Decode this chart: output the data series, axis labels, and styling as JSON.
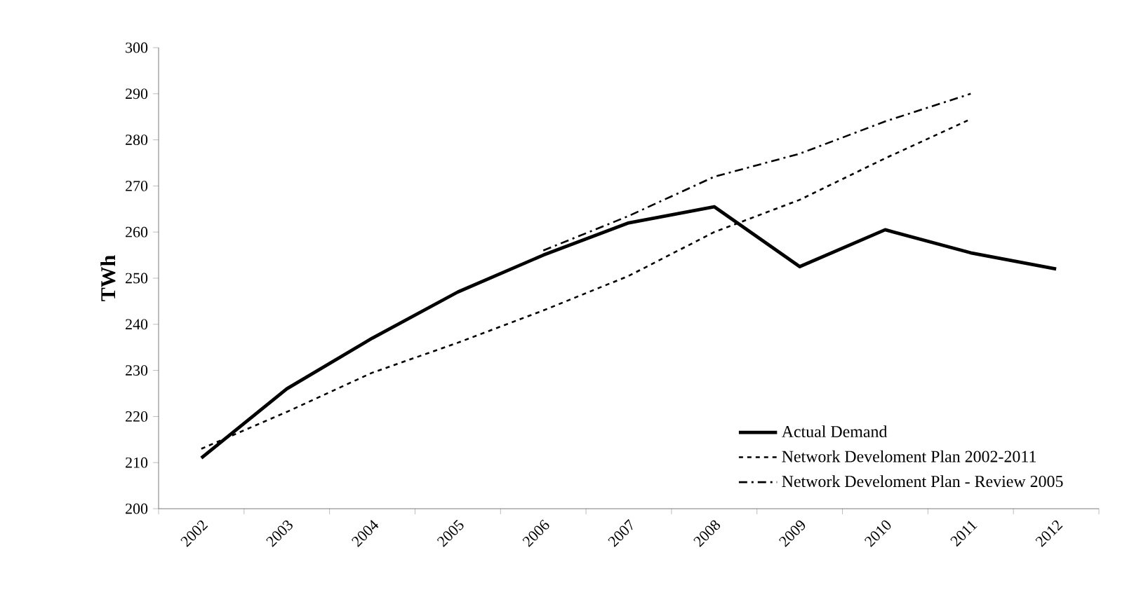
{
  "chart_data": {
    "type": "line",
    "ylabel": "TWh",
    "categories": [
      "2002",
      "2003",
      "2004",
      "2005",
      "2006",
      "2007",
      "2008",
      "2009",
      "2010",
      "2011",
      "2012"
    ],
    "series": [
      {
        "name": "Actual Demand",
        "color": "#000000",
        "line_style": "solid",
        "values": [
          211,
          226,
          237,
          247,
          255,
          262,
          265.5,
          252.5,
          260.5,
          255.5,
          252
        ]
      },
      {
        "name": "Network Develoment Plan 2002-2011",
        "color": "#000000",
        "line_style": "dashed",
        "values": [
          213,
          221,
          229.5,
          236,
          243,
          250.5,
          260,
          267,
          276,
          284.5,
          null
        ]
      },
      {
        "name": "Network Develoment Plan - Review 2005",
        "color": "#000000",
        "line_style": "dashdot",
        "values": [
          null,
          null,
          null,
          null,
          256,
          263.5,
          272,
          277,
          284,
          290,
          null
        ]
      }
    ],
    "ylim": [
      200,
      300
    ],
    "yticks": [
      200,
      210,
      220,
      230,
      240,
      250,
      260,
      270,
      280,
      290,
      300
    ],
    "grid": false,
    "legend": "bottom right",
    "marker": "none"
  }
}
